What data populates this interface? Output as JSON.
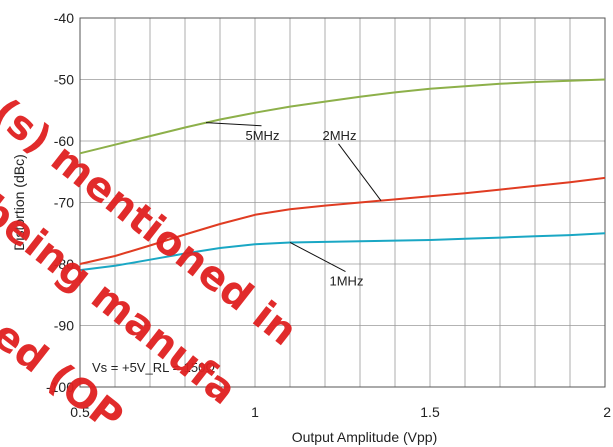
{
  "chart_data": {
    "type": "line",
    "xlabel": "Output Amplitude (Vpp)",
    "ylabel": "Distortion (dBc)",
    "xlim": [
      0.5,
      2
    ],
    "ylim": [
      -100,
      -40
    ],
    "x_ticks": [
      "0.5",
      "1",
      "1.5",
      "2"
    ],
    "y_ticks": [
      "-40",
      "-50",
      "-60",
      "-70",
      "-80",
      "-90",
      "-100"
    ],
    "grid": true,
    "annotation": "Vs = +5V_RL = 150Ω",
    "series": [
      {
        "name": "5MHz",
        "color": "#8db04a",
        "x": [
          0.5,
          0.6,
          0.7,
          0.8,
          0.9,
          1.0,
          1.1,
          1.2,
          1.3,
          1.4,
          1.5,
          1.6,
          1.7,
          1.8,
          1.9,
          2.0
        ],
        "y": [
          -62,
          -60.6,
          -59.2,
          -57.8,
          -56.5,
          -55.4,
          -54.4,
          -53.6,
          -52.8,
          -52.1,
          -51.5,
          -51.1,
          -50.7,
          -50.4,
          -50.2,
          -50
        ]
      },
      {
        "name": "2MHz",
        "color": "#e03c22",
        "x": [
          0.5,
          0.6,
          0.7,
          0.8,
          0.9,
          1.0,
          1.1,
          1.2,
          1.3,
          1.4,
          1.5,
          1.6,
          1.7,
          1.8,
          1.9,
          2.0
        ],
        "y": [
          -80,
          -78.7,
          -77,
          -75.2,
          -73.5,
          -72,
          -71.1,
          -70.5,
          -70,
          -69.5,
          -69,
          -68.5,
          -67.9,
          -67.3,
          -66.7,
          -66
        ]
      },
      {
        "name": "1MHz",
        "color": "#1aa7c4",
        "x": [
          0.5,
          0.6,
          0.7,
          0.8,
          0.9,
          1.0,
          1.1,
          1.2,
          1.3,
          1.4,
          1.5,
          1.6,
          1.7,
          1.8,
          1.9,
          2.0
        ],
        "y": [
          -81,
          -80.3,
          -79.3,
          -78.3,
          -77.4,
          -76.8,
          -76.5,
          -76.4,
          -76.3,
          -76.2,
          -76.1,
          -75.9,
          -75.7,
          -75.5,
          -75.3,
          -75
        ]
      }
    ],
    "labels": [
      {
        "text": "5MHz",
        "series": "5MHz",
        "at_x": 0.86,
        "text_x": 0.99,
        "text_y": -59.8
      },
      {
        "text": "2MHz",
        "series": "2MHz",
        "at_x": 1.36,
        "text_x": 1.21,
        "text_y": -59.8
      },
      {
        "text": "1MHz",
        "series": "1MHz",
        "at_x": 1.1,
        "text_x": 1.23,
        "text_y": -83.5
      }
    ]
  },
  "watermark": {
    "color": "#e02020",
    "lines": [
      "(s) mentioned in",
      "being manufa",
      "ed (OP"
    ]
  }
}
